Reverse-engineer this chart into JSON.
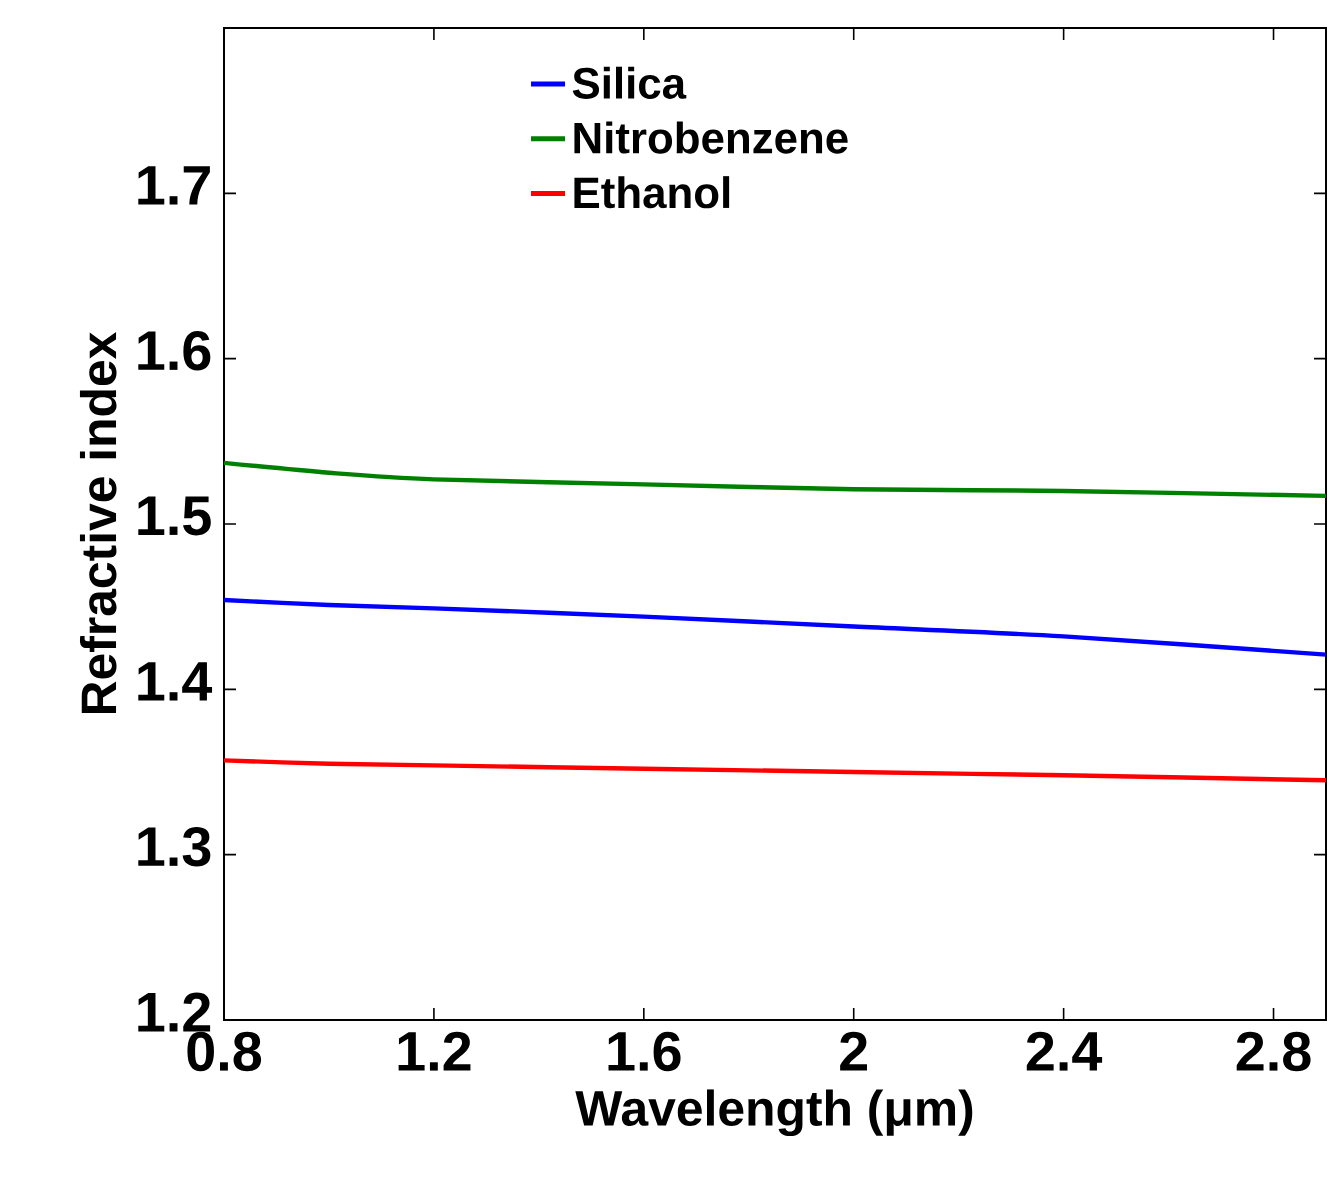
{
  "chart_data": {
    "type": "line",
    "xlabel": "Wavelength (μm)",
    "ylabel": "Refractive index",
    "x": [
      0.8,
      1.0,
      1.2,
      1.6,
      2.0,
      2.4,
      2.9
    ],
    "series": [
      {
        "name": "Silica",
        "color": "#0000ff",
        "values": [
          1.454,
          1.451,
          1.449,
          1.444,
          1.438,
          1.432,
          1.421
        ]
      },
      {
        "name": "Nitrobenzene",
        "color": "#008000",
        "values": [
          1.537,
          1.531,
          1.527,
          1.524,
          1.521,
          1.52,
          1.517
        ]
      },
      {
        "name": "Ethanol",
        "color": "#ff0000",
        "values": [
          1.357,
          1.355,
          1.354,
          1.352,
          1.35,
          1.348,
          1.345
        ]
      }
    ],
    "xlim": [
      0.8,
      2.9
    ],
    "ylim": [
      1.2,
      1.8
    ],
    "xticks": [
      0.8,
      1.2,
      1.6,
      2,
      2.4,
      2.8
    ],
    "yticks": [
      1.2,
      1.3,
      1.4,
      1.5,
      1.6,
      1.7
    ],
    "legend": "top",
    "grid": false,
    "marker": "none",
    "line_style": "solid"
  }
}
